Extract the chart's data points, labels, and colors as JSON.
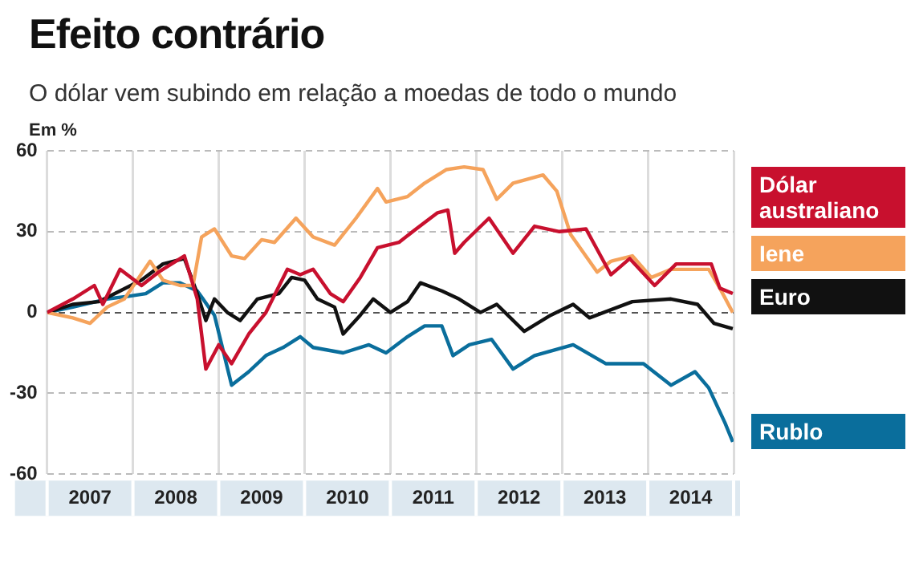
{
  "chart_data": {
    "type": "line",
    "title": "Efeito contrário",
    "subtitle": "O dólar vem subindo em relação a moedas de todo o mundo",
    "ylabel": "Em %",
    "xlim": [
      2007,
      2015
    ],
    "xticks": [
      {
        "value": 2007,
        "label": null
      },
      {
        "value": 2007.5,
        "label": "2007"
      },
      {
        "value": 2008,
        "label": null
      },
      {
        "value": 2008.5,
        "label": "2008"
      },
      {
        "value": 2009,
        "label": null
      },
      {
        "value": 2009.5,
        "label": "2009"
      },
      {
        "value": 2010,
        "label": null
      },
      {
        "value": 2010.5,
        "label": "2010"
      },
      {
        "value": 2011,
        "label": null
      },
      {
        "value": 2011.5,
        "label": "2011"
      },
      {
        "value": 2012,
        "label": null
      },
      {
        "value": 2012.5,
        "label": "2012"
      },
      {
        "value": 2013,
        "label": null
      },
      {
        "value": 2013.5,
        "label": "2013"
      },
      {
        "value": 2014,
        "label": null
      },
      {
        "value": 2014.5,
        "label": "2014"
      },
      {
        "value": 2015,
        "label": null
      }
    ],
    "ylim": [
      -60,
      60
    ],
    "yticks": [
      -60,
      -30,
      0,
      30,
      60
    ],
    "grid": true,
    "legend": "right",
    "marker": "none",
    "series": [
      {
        "name": "Dólar australiano",
        "color": "#c8102e",
        "x": [
          2007,
          2007.3,
          2007.55,
          2007.65,
          2007.85,
          2008.1,
          2008.3,
          2008.6,
          2008.75,
          2008.85,
          2009.0,
          2009.15,
          2009.35,
          2009.55,
          2009.8,
          2009.95,
          2010.1,
          2010.3,
          2010.45,
          2010.65,
          2010.85,
          2011.1,
          2011.3,
          2011.55,
          2011.67,
          2011.75,
          2011.86,
          2012.15,
          2012.43,
          2012.68,
          2012.97,
          2013.28,
          2013.57,
          2013.79,
          2014.08,
          2014.33,
          2014.74,
          2014.84,
          2014.99
        ],
        "values": [
          0,
          5,
          10,
          3,
          16,
          10,
          15,
          21,
          5,
          -21,
          -12,
          -19,
          -8,
          0,
          16,
          14,
          16,
          7,
          4,
          13,
          24,
          26,
          31,
          37,
          38,
          22,
          26,
          35,
          22,
          32,
          30,
          31,
          14,
          20,
          10,
          18,
          18,
          9,
          7
        ]
      },
      {
        "name": "Iene",
        "color": "#f5a35c",
        "x": [
          2007,
          2007.3,
          2007.5,
          2007.7,
          2007.9,
          2008.2,
          2008.35,
          2008.55,
          2008.7,
          2008.8,
          2008.95,
          2009.15,
          2009.3,
          2009.5,
          2009.65,
          2009.9,
          2010.1,
          2010.35,
          2010.6,
          2010.85,
          2010.95,
          2011.2,
          2011.4,
          2011.65,
          2011.86,
          2012.08,
          2012.24,
          2012.43,
          2012.78,
          2012.94,
          2013.1,
          2013.41,
          2013.57,
          2013.82,
          2014.04,
          2014.27,
          2014.71,
          2014.84,
          2014.99
        ],
        "values": [
          0,
          -2,
          -4,
          2,
          5,
          19,
          12,
          10,
          10,
          28,
          31,
          21,
          20,
          27,
          26,
          35,
          28,
          25,
          35,
          46,
          41,
          43,
          48,
          53,
          54,
          53,
          42,
          48,
          51,
          45,
          29,
          15,
          19,
          21,
          13,
          16,
          16,
          9,
          0
        ]
      },
      {
        "name": "Euro",
        "color": "#111111",
        "x": [
          2007,
          2007.3,
          2007.6,
          2007.85,
          2008.1,
          2008.35,
          2008.6,
          2008.75,
          2008.85,
          2008.95,
          2009.1,
          2009.25,
          2009.45,
          2009.7,
          2009.85,
          2010.0,
          2010.15,
          2010.35,
          2010.45,
          2010.65,
          2010.8,
          2011.0,
          2011.2,
          2011.35,
          2011.6,
          2011.8,
          2012.05,
          2012.24,
          2012.56,
          2012.87,
          2013.13,
          2013.32,
          2013.82,
          2014.27,
          2014.58,
          2014.77,
          2014.99
        ],
        "values": [
          0,
          3,
          4,
          8,
          12,
          18,
          20,
          7,
          -3,
          5,
          0,
          -3,
          5,
          7,
          13,
          12,
          5,
          2,
          -8,
          -1,
          5,
          0,
          4,
          11,
          8,
          5,
          0,
          3,
          -7,
          -1,
          3,
          -2,
          4,
          5,
          3,
          -4,
          -6
        ]
      },
      {
        "name": "Rublo",
        "color": "#0a6e9c",
        "x": [
          2007,
          2007.3,
          2007.7,
          2007.95,
          2008.15,
          2008.35,
          2008.55,
          2008.75,
          2008.95,
          2009.05,
          2009.15,
          2009.35,
          2009.55,
          2009.75,
          2009.95,
          2010.1,
          2010.45,
          2010.75,
          2010.95,
          2011.2,
          2011.4,
          2011.6,
          2011.73,
          2011.92,
          2012.18,
          2012.43,
          2012.68,
          2013.13,
          2013.51,
          2013.95,
          2014.27,
          2014.55,
          2014.71,
          2014.9,
          2014.99
        ],
        "values": [
          0,
          2,
          5,
          6,
          7,
          11,
          11,
          8,
          -1,
          -14,
          -27,
          -22,
          -16,
          -13,
          -9,
          -13,
          -15,
          -12,
          -15,
          -9,
          -5,
          -5,
          -16,
          -12,
          -10,
          -21,
          -16,
          -12,
          -19,
          -19,
          -27,
          -22,
          -28,
          -41,
          -48
        ]
      }
    ]
  }
}
